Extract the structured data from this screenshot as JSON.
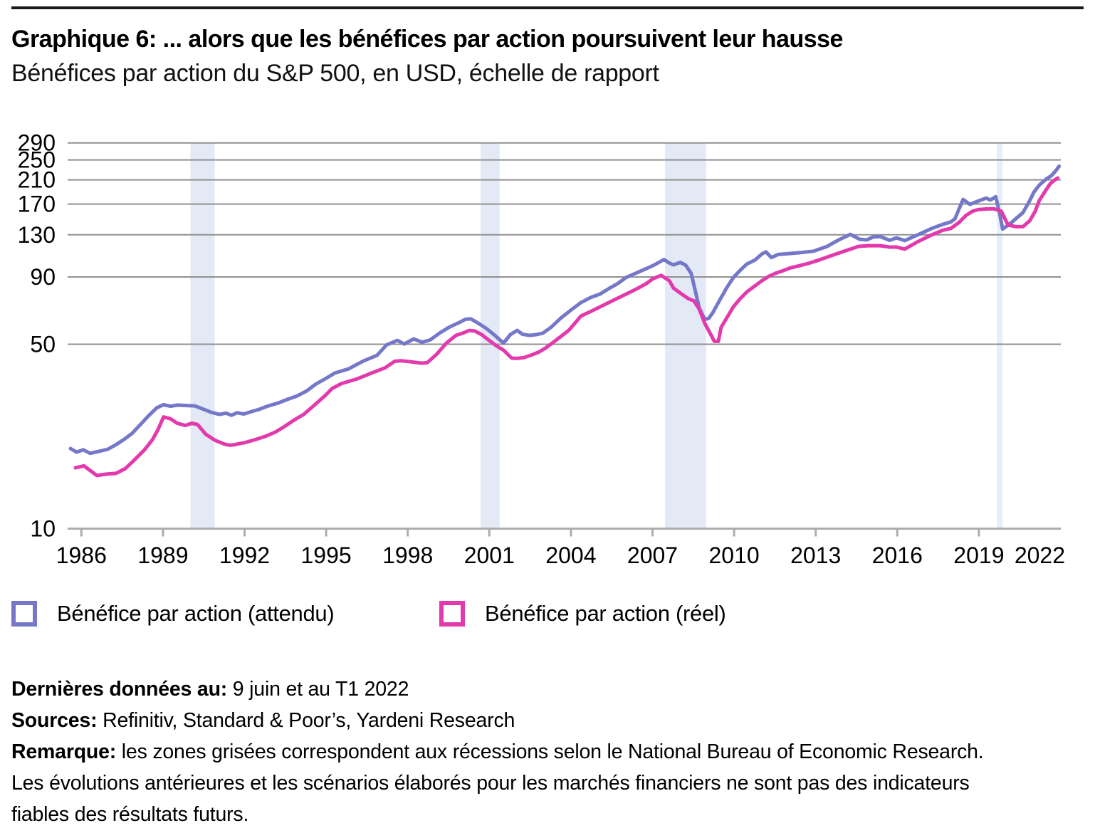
{
  "header": {
    "title": "Graphique 6: ... alors que les bénéfices par action poursuivent leur hausse",
    "subtitle": "Bénéfices par action du S&P 500, en USD, échelle de rapport"
  },
  "legend": {
    "items": [
      {
        "label": "Bénéfice par action (attendu)",
        "color": "#7578C9"
      },
      {
        "label": "Bénéfice par action (réel)",
        "color": "#E23AAD"
      }
    ]
  },
  "footnotes": {
    "lines": [
      {
        "label": "Dernières données au:",
        "text": " 9 juin et au T1 2022"
      },
      {
        "label": "Sources:",
        "text": " Refinitiv, Standard & Poor’s, Yardeni Research"
      },
      {
        "label": "Remarque:",
        "text": " les zones grisées correspondent aux récessions selon le National Bureau of Economic Research."
      },
      {
        "label": "",
        "text": "Les évolutions antérieures et les scénarios élaborés pour les marchés financiers ne sont pas des indicateurs"
      },
      {
        "label": "",
        "text": "fiables des résultats futurs."
      }
    ]
  },
  "chart_data": {
    "type": "line",
    "title": "Bénéfices par action du S&P 500, en USD, échelle de rapport",
    "y_scale": "log",
    "ylabel": "",
    "xlabel": "",
    "ylim": [
      10,
      290
    ],
    "y_ticks": [
      290,
      250,
      210,
      170,
      130,
      90,
      50,
      10
    ],
    "x_ticks": [
      1986,
      1989,
      1992,
      1995,
      1998,
      2001,
      2004,
      2007,
      2010,
      2013,
      2016,
      2019,
      2022
    ],
    "grid": "horizontal",
    "legend_position": "bottom",
    "colors": {
      "band": "#E3EAF6",
      "band_light": "#E7EEF9",
      "gridline": "#909090",
      "axis": "#ACACAC",
      "tick_text": "#000000"
    },
    "recession_bands": [
      {
        "from": 1990.49,
        "to": 1991.38,
        "light": false
      },
      {
        "from": 2001.16,
        "to": 2001.86,
        "light": false
      },
      {
        "from": 2007.94,
        "to": 2009.45,
        "light": false
      },
      {
        "from": 2020.14,
        "to": 2020.35,
        "light": true
      }
    ],
    "series": [
      {
        "name": "Bénéfice par action (attendu)",
        "color": "#7578C9",
        "points": [
          [
            1986.08,
            20.1
          ],
          [
            1986.3,
            19.5
          ],
          [
            1986.55,
            19.9
          ],
          [
            1986.8,
            19.3
          ],
          [
            1987.1,
            19.6
          ],
          [
            1987.45,
            20.0
          ],
          [
            1987.75,
            20.8
          ],
          [
            1988.05,
            21.8
          ],
          [
            1988.35,
            23.0
          ],
          [
            1988.65,
            24.8
          ],
          [
            1988.95,
            26.8
          ],
          [
            1989.25,
            28.7
          ],
          [
            1989.5,
            29.5
          ],
          [
            1989.75,
            29.1
          ],
          [
            1990.0,
            29.4
          ],
          [
            1990.3,
            29.3
          ],
          [
            1990.65,
            29.2
          ],
          [
            1990.95,
            28.4
          ],
          [
            1991.25,
            27.6
          ],
          [
            1991.55,
            27.1
          ],
          [
            1991.8,
            27.4
          ],
          [
            1992.0,
            26.9
          ],
          [
            1992.2,
            27.5
          ],
          [
            1992.45,
            27.2
          ],
          [
            1992.7,
            27.7
          ],
          [
            1993.0,
            28.3
          ],
          [
            1993.35,
            29.2
          ],
          [
            1993.7,
            29.9
          ],
          [
            1994.05,
            30.9
          ],
          [
            1994.4,
            31.8
          ],
          [
            1994.75,
            33.2
          ],
          [
            1995.1,
            35.3
          ],
          [
            1995.45,
            37.0
          ],
          [
            1995.8,
            38.9
          ],
          [
            1996.3,
            40.3
          ],
          [
            1996.85,
            43.2
          ],
          [
            1997.35,
            45.4
          ],
          [
            1997.7,
            49.7
          ],
          [
            1998.1,
            51.7
          ],
          [
            1998.35,
            50.1
          ],
          [
            1998.7,
            52.4
          ],
          [
            1999.0,
            50.9
          ],
          [
            1999.3,
            51.9
          ],
          [
            1999.65,
            55.1
          ],
          [
            2000.0,
            58.0
          ],
          [
            2000.35,
            60.3
          ],
          [
            2000.6,
            62.2
          ],
          [
            2000.8,
            62.4
          ],
          [
            2001.1,
            59.8
          ],
          [
            2001.35,
            57.6
          ],
          [
            2001.65,
            54.4
          ],
          [
            2002.0,
            50.5
          ],
          [
            2002.25,
            54.4
          ],
          [
            2002.5,
            56.4
          ],
          [
            2002.7,
            54.6
          ],
          [
            2002.95,
            54.0
          ],
          [
            2003.2,
            54.4
          ],
          [
            2003.45,
            55.1
          ],
          [
            2003.75,
            58.0
          ],
          [
            2004.1,
            62.7
          ],
          [
            2004.45,
            67.0
          ],
          [
            2004.85,
            72.0
          ],
          [
            2005.2,
            75.2
          ],
          [
            2005.55,
            77.5
          ],
          [
            2005.9,
            81.6
          ],
          [
            2006.2,
            84.9
          ],
          [
            2006.5,
            89.5
          ],
          [
            2006.85,
            92.8
          ],
          [
            2007.2,
            96.2
          ],
          [
            2007.55,
            100.0
          ],
          [
            2007.9,
            104.8
          ],
          [
            2008.1,
            101.6
          ],
          [
            2008.25,
            100.0
          ],
          [
            2008.5,
            102.2
          ],
          [
            2008.7,
            99.7
          ],
          [
            2008.9,
            92.8
          ],
          [
            2009.2,
            68.6
          ],
          [
            2009.4,
            62.1
          ],
          [
            2009.55,
            62.7
          ],
          [
            2009.7,
            66.0
          ],
          [
            2009.9,
            72.0
          ],
          [
            2010.2,
            81.6
          ],
          [
            2010.45,
            89.5
          ],
          [
            2010.7,
            95.3
          ],
          [
            2010.95,
            100.8
          ],
          [
            2011.25,
            104.4
          ],
          [
            2011.5,
            110.0
          ],
          [
            2011.65,
            112.0
          ],
          [
            2011.85,
            106.6
          ],
          [
            2012.1,
            109.5
          ],
          [
            2012.4,
            110.1
          ],
          [
            2012.9,
            111.2
          ],
          [
            2013.4,
            112.7
          ],
          [
            2013.9,
            117.5
          ],
          [
            2014.3,
            124.0
          ],
          [
            2014.75,
            130.5
          ],
          [
            2015.1,
            125.0
          ],
          [
            2015.35,
            124.4
          ],
          [
            2015.6,
            127.6
          ],
          [
            2015.85,
            128.0
          ],
          [
            2016.2,
            123.9
          ],
          [
            2016.45,
            126.6
          ],
          [
            2016.75,
            123.6
          ],
          [
            2017.25,
            130.2
          ],
          [
            2017.75,
            137.5
          ],
          [
            2018.15,
            142.4
          ],
          [
            2018.45,
            145.5
          ],
          [
            2018.6,
            149.5
          ],
          [
            2018.75,
            163.0
          ],
          [
            2018.9,
            177.0
          ],
          [
            2019.15,
            169.5
          ],
          [
            2019.45,
            174.4
          ],
          [
            2019.75,
            179.1
          ],
          [
            2019.9,
            176.0
          ],
          [
            2020.1,
            181.3
          ],
          [
            2020.25,
            155.0
          ],
          [
            2020.35,
            136.7
          ],
          [
            2020.6,
            142.4
          ],
          [
            2020.85,
            150.0
          ],
          [
            2021.1,
            157.7
          ],
          [
            2021.35,
            175.3
          ],
          [
            2021.5,
            188.5
          ],
          [
            2021.7,
            200.6
          ],
          [
            2021.95,
            211.3
          ],
          [
            2022.15,
            218.0
          ],
          [
            2022.3,
            227.0
          ],
          [
            2022.43,
            236.5
          ]
        ]
      },
      {
        "name": "Bénéfice par action (réel)",
        "color": "#E23AAD",
        "points": [
          [
            1986.26,
            17.0
          ],
          [
            1986.57,
            17.3
          ],
          [
            1987.05,
            15.9
          ],
          [
            1987.4,
            16.1
          ],
          [
            1987.75,
            16.2
          ],
          [
            1988.1,
            16.9
          ],
          [
            1988.45,
            18.3
          ],
          [
            1988.8,
            19.9
          ],
          [
            1989.1,
            21.8
          ],
          [
            1989.3,
            23.8
          ],
          [
            1989.5,
            26.5
          ],
          [
            1989.75,
            26.1
          ],
          [
            1990.0,
            25.1
          ],
          [
            1990.3,
            24.6
          ],
          [
            1990.55,
            25.1
          ],
          [
            1990.75,
            24.8
          ],
          [
            1991.05,
            22.8
          ],
          [
            1991.4,
            21.6
          ],
          [
            1991.75,
            20.9
          ],
          [
            1991.95,
            20.7
          ],
          [
            1992.1,
            20.8
          ],
          [
            1992.5,
            21.2
          ],
          [
            1992.9,
            21.8
          ],
          [
            1993.25,
            22.4
          ],
          [
            1993.6,
            23.2
          ],
          [
            1993.95,
            24.4
          ],
          [
            1994.3,
            25.8
          ],
          [
            1994.65,
            27.1
          ],
          [
            1995.0,
            29.1
          ],
          [
            1995.45,
            32.0
          ],
          [
            1995.7,
            34.0
          ],
          [
            1996.05,
            35.5
          ],
          [
            1996.6,
            36.9
          ],
          [
            1997.1,
            38.7
          ],
          [
            1997.65,
            40.7
          ],
          [
            1998.0,
            43.1
          ],
          [
            1998.25,
            43.3
          ],
          [
            1998.6,
            42.9
          ],
          [
            1999.0,
            42.4
          ],
          [
            1999.2,
            42.6
          ],
          [
            1999.55,
            45.9
          ],
          [
            1999.9,
            50.5
          ],
          [
            2000.25,
            54.0
          ],
          [
            2000.5,
            55.1
          ],
          [
            2000.75,
            56.4
          ],
          [
            2000.95,
            56.1
          ],
          [
            2001.2,
            54.4
          ],
          [
            2001.45,
            51.9
          ],
          [
            2001.75,
            49.2
          ],
          [
            2002.0,
            47.5
          ],
          [
            2002.3,
            44.3
          ],
          [
            2002.5,
            44.2
          ],
          [
            2002.75,
            44.5
          ],
          [
            2003.05,
            45.6
          ],
          [
            2003.3,
            46.7
          ],
          [
            2003.55,
            48.4
          ],
          [
            2003.8,
            50.6
          ],
          [
            2004.1,
            53.4
          ],
          [
            2004.4,
            56.5
          ],
          [
            2004.65,
            60.5
          ],
          [
            2004.85,
            64.0
          ],
          [
            2005.2,
            66.5
          ],
          [
            2005.55,
            69.3
          ],
          [
            2005.9,
            72.2
          ],
          [
            2006.25,
            75.2
          ],
          [
            2006.6,
            78.3
          ],
          [
            2006.95,
            81.6
          ],
          [
            2007.25,
            84.9
          ],
          [
            2007.5,
            88.7
          ],
          [
            2007.8,
            91.2
          ],
          [
            2008.1,
            87.0
          ],
          [
            2008.25,
            81.6
          ],
          [
            2008.55,
            77.5
          ],
          [
            2008.8,
            74.4
          ],
          [
            2009.0,
            73.0
          ],
          [
            2009.2,
            67.9
          ],
          [
            2009.4,
            60.0
          ],
          [
            2009.6,
            55.0
          ],
          [
            2009.75,
            51.3
          ],
          [
            2009.9,
            51.3
          ],
          [
            2010.0,
            57.9
          ],
          [
            2010.2,
            62.7
          ],
          [
            2010.45,
            69.3
          ],
          [
            2010.7,
            74.4
          ],
          [
            2010.95,
            79.0
          ],
          [
            2011.25,
            83.3
          ],
          [
            2011.5,
            87.0
          ],
          [
            2011.75,
            90.4
          ],
          [
            2012.0,
            92.9
          ],
          [
            2012.3,
            95.2
          ],
          [
            2012.55,
            97.4
          ],
          [
            2012.9,
            99.3
          ],
          [
            2013.25,
            101.6
          ],
          [
            2013.6,
            104.3
          ],
          [
            2014.2,
            109.7
          ],
          [
            2015.05,
            117.5
          ],
          [
            2015.4,
            118.2
          ],
          [
            2015.85,
            118.2
          ],
          [
            2016.2,
            116.8
          ],
          [
            2016.45,
            116.8
          ],
          [
            2016.75,
            114.7
          ],
          [
            2017.25,
            122.7
          ],
          [
            2017.75,
            130.0
          ],
          [
            2018.15,
            135.3
          ],
          [
            2018.45,
            137.5
          ],
          [
            2018.75,
            144.8
          ],
          [
            2019.0,
            153.8
          ],
          [
            2019.25,
            159.8
          ],
          [
            2019.45,
            162.0
          ],
          [
            2019.8,
            163.0
          ],
          [
            2020.05,
            163.0
          ],
          [
            2020.3,
            159.8
          ],
          [
            2020.55,
            141.6
          ],
          [
            2020.85,
            139.5
          ],
          [
            2021.1,
            139.5
          ],
          [
            2021.35,
            147.0
          ],
          [
            2021.55,
            159.7
          ],
          [
            2021.7,
            175.3
          ],
          [
            2021.95,
            192.5
          ],
          [
            2022.1,
            202.8
          ],
          [
            2022.25,
            209.2
          ],
          [
            2022.38,
            213.5
          ]
        ]
      }
    ]
  }
}
